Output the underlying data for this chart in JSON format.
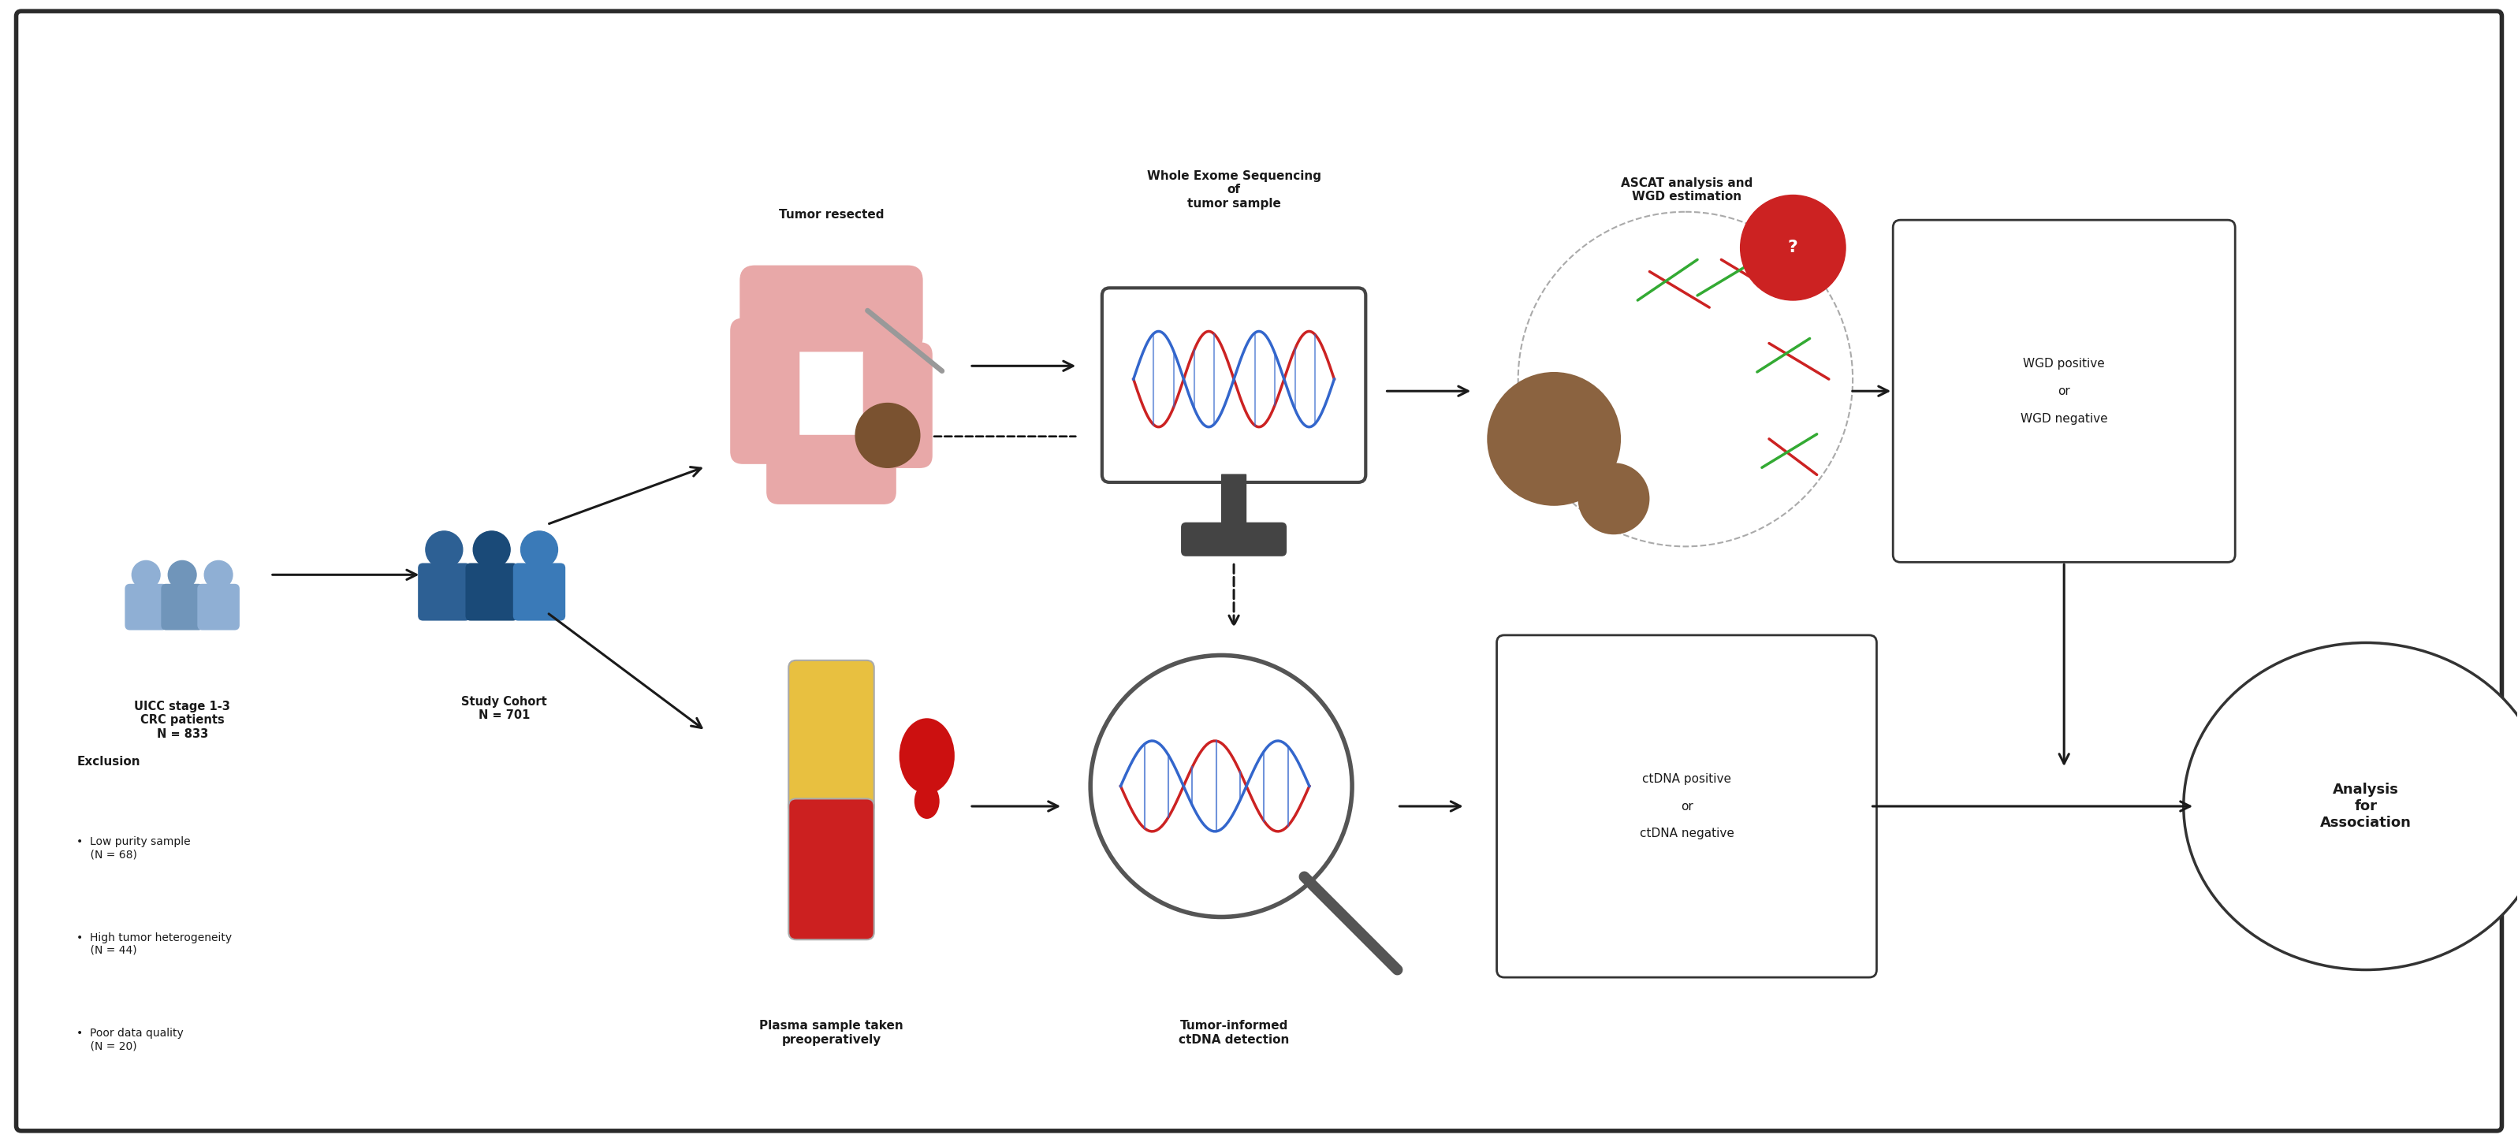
{
  "bg_color": "#ffffff",
  "border_color": "#2a2a2a",
  "text_color": "#1a1a1a",
  "fig_width": 31.94,
  "fig_height": 14.49,
  "labels": {
    "uicc": "UICC stage 1-3\nCRC patients\nN = 833",
    "study_cohort": "Study Cohort\nN = 701",
    "tumor_resected": "Tumor resected",
    "wes": "Whole Exome Sequencing\nof\ntumor sample",
    "ascat": "ASCAT analysis and\nWGD estimation",
    "wgd_result": "WGD positive\n\nor\n\nWGD negative",
    "exclusion_title": "Exclusion",
    "exclusion_bullets": [
      "•  Low purity sample\n    (N = 68)",
      "•  High tumor heterogeneity\n    (N = 44)",
      "•  Poor data quality\n    (N = 20)"
    ],
    "plasma": "Plasma sample taken\npreoperatively",
    "ctdna_detection": "Tumor-informed\nctDNA detection",
    "ctdna_result": "ctDNA positive\n\nor\n\nctDNA negative",
    "analysis": "Analysis\nfor\nAssociation"
  },
  "colors": {
    "uicc_people": [
      "#8fafd4",
      "#7095ba",
      "#8fafd4"
    ],
    "cohort_people": [
      "#2d6094",
      "#1a4a78",
      "#3a7ab8"
    ],
    "colon": "#e8a8a8",
    "tumor_brown": "#7a5230",
    "monitor_frame": "#444444",
    "dna_red": "#cc2222",
    "dna_blue": "#3366cc",
    "cell_brown": "#8b6340",
    "qmark_red": "#cc2222",
    "dna_green": "#33aa33",
    "tube_yellow": "#e8c040",
    "tube_red": "#cc2020",
    "blood_drop": "#cc1010",
    "lens_gray": "#555555",
    "box_border": "#333333",
    "arrow": "#1a1a1a"
  }
}
